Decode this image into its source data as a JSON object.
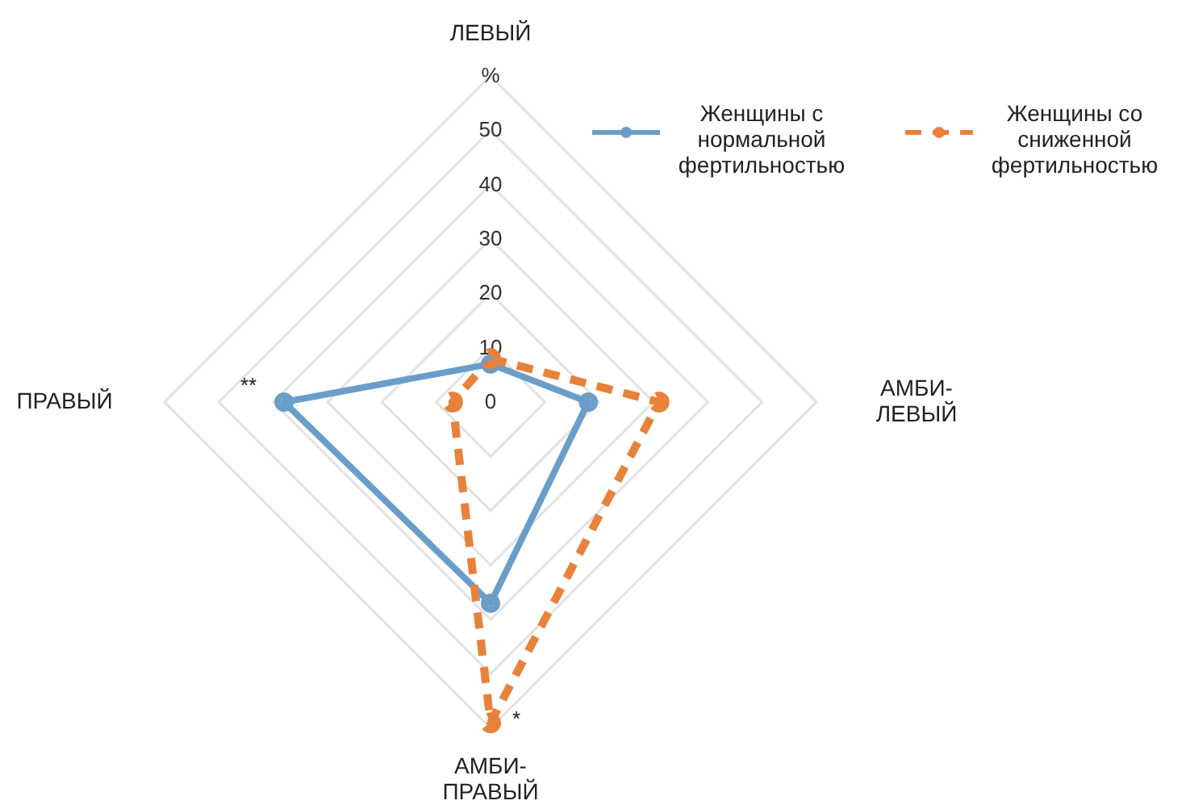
{
  "chart_data": {
    "type": "radar",
    "categories": [
      "ЛЕВЫЙ",
      "АМБИ-ЛЕВЫЙ",
      "АМБИ-ПРАВЫЙ",
      "ПРАВЫЙ"
    ],
    "series": [
      {
        "name": "Женщины с нормальной фертильностью",
        "color": "#6a9ec8",
        "values": [
          7,
          18,
          37,
          38
        ],
        "line_style": "solid"
      },
      {
        "name": "Женщины со сниженной фертильностью",
        "color": "#e8823a",
        "values": [
          8,
          31,
          59,
          7
        ],
        "line_style": "dashed"
      }
    ],
    "ylim": [
      0,
      60
    ],
    "yticks": [
      0,
      10,
      20,
      30,
      40,
      50,
      {
        "value": 60,
        "label": "%"
      }
    ],
    "grid": true,
    "legend": "top right",
    "marker": "circle",
    "annotations": [
      {
        "text": "**",
        "x": "ПРАВЫЙ"
      },
      {
        "text": "*",
        "x": "АМБИ-ПРАВЫЙ"
      }
    ]
  }
}
